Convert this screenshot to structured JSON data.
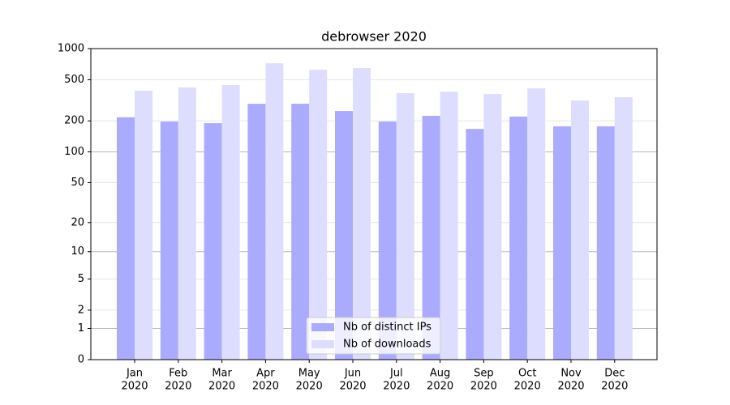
{
  "chart_data": {
    "type": "bar",
    "title": "debrowser 2020",
    "yscale": "log1p",
    "categories": [
      [
        "Jan",
        "2020"
      ],
      [
        "Feb",
        "2020"
      ],
      [
        "Mar",
        "2020"
      ],
      [
        "Apr",
        "2020"
      ],
      [
        "May",
        "2020"
      ],
      [
        "Jun",
        "2020"
      ],
      [
        "Jul",
        "2020"
      ],
      [
        "Aug",
        "2020"
      ],
      [
        "Sep",
        "2020"
      ],
      [
        "Oct",
        "2020"
      ],
      [
        "Nov",
        "2020"
      ],
      [
        "Dec",
        "2020"
      ]
    ],
    "series": [
      {
        "name": "Nb of distinct IPs",
        "color": "#aaaaff",
        "values": [
          217,
          197,
          190,
          293,
          293,
          249,
          197,
          224,
          167,
          220,
          177,
          177
        ]
      },
      {
        "name": "Nb of downloads",
        "color": "#ddddff",
        "values": [
          392,
          421,
          444,
          722,
          625,
          648,
          371,
          384,
          364,
          413,
          315,
          339
        ]
      }
    ],
    "ylim": [
      0,
      1000
    ],
    "yticks": [
      0,
      1,
      2,
      5,
      10,
      20,
      50,
      100,
      200,
      500,
      1000
    ],
    "grid": true,
    "legend": "lower center"
  }
}
